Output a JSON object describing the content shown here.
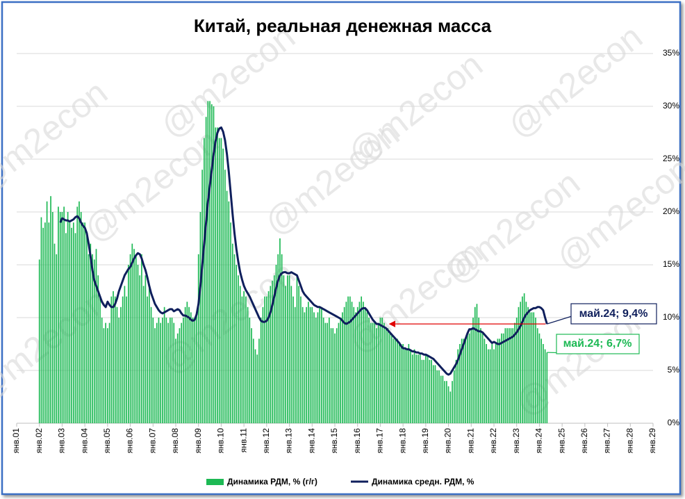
{
  "chart_data": {
    "type": "combo",
    "title": "Китай, реальная денежная масса",
    "watermark": "@m2econ",
    "categories": [
      "янв.01",
      null,
      null,
      null,
      null,
      null,
      null,
      null,
      null,
      null,
      null,
      null,
      "янв.02",
      null,
      null,
      null,
      null,
      null,
      null,
      null,
      null,
      null,
      null,
      null,
      "янв.03",
      null,
      null,
      null,
      null,
      null,
      null,
      null,
      null,
      null,
      null,
      null,
      "янв.04",
      null,
      null,
      null,
      null,
      null,
      null,
      null,
      null,
      null,
      null,
      null,
      "янв.05",
      null,
      null,
      null,
      null,
      null,
      null,
      null,
      null,
      null,
      null,
      null,
      "янв.06",
      null,
      null,
      null,
      null,
      null,
      null,
      null,
      null,
      null,
      null,
      null,
      "янв.07",
      null,
      null,
      null,
      null,
      null,
      null,
      null,
      null,
      null,
      null,
      null,
      "янв.08",
      null,
      null,
      null,
      null,
      null,
      null,
      null,
      null,
      null,
      null,
      null,
      "янв.09",
      null,
      null,
      null,
      null,
      null,
      null,
      null,
      null,
      null,
      null,
      null,
      "янв.10",
      null,
      null,
      null,
      null,
      null,
      null,
      null,
      null,
      null,
      null,
      null,
      "янв.11",
      null,
      null,
      null,
      null,
      null,
      null,
      null,
      null,
      null,
      null,
      null,
      "янв.12",
      null,
      null,
      null,
      null,
      null,
      null,
      null,
      null,
      null,
      null,
      null,
      "янв.13",
      null,
      null,
      null,
      null,
      null,
      null,
      null,
      null,
      null,
      null,
      null,
      "янв.14",
      null,
      null,
      null,
      null,
      null,
      null,
      null,
      null,
      null,
      null,
      null,
      "янв.15",
      null,
      null,
      null,
      null,
      null,
      null,
      null,
      null,
      null,
      null,
      null,
      "янв.16",
      null,
      null,
      null,
      null,
      null,
      null,
      null,
      null,
      null,
      null,
      null,
      "янв.17",
      null,
      null,
      null,
      null,
      null,
      null,
      null,
      null,
      null,
      null,
      null,
      "янв.18",
      null,
      null,
      null,
      null,
      null,
      null,
      null,
      null,
      null,
      null,
      null,
      "янв.19",
      null,
      null,
      null,
      null,
      null,
      null,
      null,
      null,
      null,
      null,
      null,
      "янв.20",
      null,
      null,
      null,
      null,
      null,
      null,
      null,
      null,
      null,
      null,
      null,
      "янв.21",
      null,
      null,
      null,
      null,
      null,
      null,
      null,
      null,
      null,
      null,
      null,
      "янв.22",
      null,
      null,
      null,
      null,
      null,
      null,
      null,
      null,
      null,
      null,
      null,
      "янв.23",
      null,
      null,
      null,
      null,
      null,
      null,
      null,
      null,
      null,
      null,
      null,
      "янв.24",
      null,
      null,
      null,
      null,
      null,
      null,
      null,
      null,
      null,
      null,
      null,
      "янв.25",
      null,
      null,
      null,
      null,
      null,
      null,
      null,
      null,
      null,
      null,
      null,
      "янв.26",
      null,
      null,
      null,
      null,
      null,
      null,
      null,
      null,
      null,
      null,
      null,
      "янв.27",
      null,
      null,
      null,
      null,
      null,
      null,
      null,
      null,
      null,
      null,
      null,
      "янв.28",
      null,
      null,
      null,
      null,
      null,
      null,
      null,
      null,
      null,
      null,
      null,
      "янв.29"
    ],
    "series": [
      {
        "name": "Динамика РДМ, % (г/г)",
        "type": "bar",
        "color": "#1db954",
        "end_label": "май.24; 6,7%",
        "values": [
          null,
          null,
          null,
          null,
          null,
          null,
          null,
          null,
          null,
          null,
          null,
          null,
          15.5,
          19.5,
          18.5,
          19,
          21,
          19,
          21.5,
          20,
          17,
          16,
          20.5,
          20,
          20,
          20.5,
          18,
          20,
          19,
          18.5,
          19,
          18,
          20.5,
          21,
          20,
          19,
          19,
          18,
          16,
          17,
          16,
          15.5,
          16.5,
          14,
          12,
          10,
          9,
          9.5,
          9,
          9.5,
          12,
          12.5,
          12,
          11,
          10,
          11,
          12,
          13,
          12,
          15,
          16,
          17,
          16.5,
          16,
          15,
          14,
          16,
          13,
          14,
          12,
          13,
          11,
          10,
          9,
          9.5,
          10,
          9.5,
          10,
          11,
          10,
          9.5,
          10,
          10,
          9.5,
          8,
          8.5,
          9,
          9.5,
          10,
          11,
          11.5,
          11,
          10.5,
          10,
          10,
          10.5,
          16,
          20,
          24,
          27,
          29,
          30.5,
          30.5,
          30.2,
          30,
          28,
          28,
          27,
          27,
          26,
          24,
          22,
          21,
          19,
          17,
          16,
          15,
          14,
          13,
          12,
          12.5,
          12,
          11,
          10,
          9,
          8,
          7,
          6.5,
          8,
          10,
          11,
          12,
          12,
          12.5,
          13,
          13.5,
          14,
          15,
          16,
          17.5,
          16,
          14,
          13,
          14,
          14,
          13,
          12,
          11,
          14,
          13,
          12,
          11,
          10.5,
          11,
          11.5,
          11,
          11,
          10.5,
          10,
          10.5,
          11,
          11,
          10,
          9.5,
          9.5,
          10,
          9,
          9,
          8.5,
          9,
          9.5,
          10,
          10.5,
          11,
          11.5,
          12,
          12,
          11.5,
          11,
          10.5,
          11,
          11.5,
          12,
          11.5,
          11,
          10.5,
          10,
          9.5,
          9.5,
          9.5,
          9,
          9.5,
          10,
          10,
          9.5,
          9,
          9,
          8.5,
          8.5,
          8,
          8,
          8,
          7.5,
          7.5,
          7.5,
          7,
          7,
          7.5,
          7,
          6.5,
          7,
          6.5,
          6.5,
          6.5,
          6,
          6,
          6.5,
          6.5,
          6,
          6,
          5.5,
          5.5,
          5,
          5,
          4.5,
          4.5,
          4,
          4,
          3.5,
          3,
          4,
          5,
          6,
          7,
          7.5,
          8,
          8,
          8,
          8.5,
          8.5,
          9,
          10,
          11,
          11.3,
          10,
          9,
          8.5,
          8,
          7.5,
          7,
          7,
          7.5,
          7,
          7.5,
          8,
          8,
          8.5,
          8.5,
          9,
          9,
          9,
          9,
          9,
          9.5,
          10,
          11,
          11.5,
          12,
          12.3,
          11.5,
          11,
          10.5,
          10.5,
          10.5,
          10,
          9,
          8.5,
          8,
          7.5,
          7,
          6.7,
          null,
          null,
          null,
          null,
          null,
          null,
          null,
          null,
          null,
          null,
          null,
          null,
          null,
          null,
          null,
          null,
          null,
          null,
          null,
          null,
          null,
          null,
          null,
          null,
          null,
          null,
          null,
          null,
          null,
          null,
          null,
          null,
          null,
          null,
          null,
          null,
          null,
          null,
          null,
          null,
          null,
          null,
          null,
          null,
          null,
          null,
          null,
          null,
          null,
          null,
          null,
          null,
          null,
          null,
          null,
          null
        ]
      },
      {
        "name": "Динамика средн. РДМ, %",
        "type": "line",
        "color": "#0f1f5c",
        "end_label": "май.24; 9,4%",
        "values": [
          null,
          null,
          null,
          null,
          null,
          null,
          null,
          null,
          null,
          null,
          null,
          null,
          null,
          null,
          null,
          null,
          null,
          null,
          null,
          null,
          null,
          null,
          null,
          19,
          19.4,
          19.3,
          19.2,
          19.2,
          19.1,
          19.2,
          19.3,
          19.5,
          19.6,
          19.4,
          19,
          18.7,
          18.5,
          18,
          17,
          15.8,
          14.5,
          13.5,
          13,
          12.5,
          12,
          11.5,
          11.2,
          11,
          11.5,
          11.2,
          11,
          11,
          11.3,
          11.8,
          12.5,
          13,
          13.5,
          14,
          14.3,
          14.6,
          14.8,
          15.2,
          15.6,
          15.9,
          16.1,
          16,
          15.6,
          15,
          14.5,
          13.8,
          13,
          12.3,
          11.8,
          11.3,
          11,
          10.7,
          10.5,
          10.4,
          10.5,
          10.6,
          10.7,
          10.8,
          10.8,
          10.6,
          10.7,
          10.8,
          10.7,
          10.4,
          10.2,
          10.2,
          10.1,
          10,
          9.8,
          9.7,
          9.8,
          10.3,
          11.3,
          13,
          15,
          17,
          19,
          21,
          22.5,
          24,
          25.5,
          26.7,
          27.5,
          27.9,
          28,
          27.6,
          26.8,
          25.5,
          23.8,
          21.8,
          19.8,
          18,
          16.5,
          15.3,
          14.3,
          13.6,
          13,
          12.6,
          12.3,
          12,
          11.6,
          11.2,
          10.8,
          10.4,
          10,
          9.7,
          9.6,
          9.6,
          9.7,
          10,
          10.5,
          11.2,
          12,
          12.8,
          13.5,
          14,
          14.2,
          14.3,
          14.3,
          14.2,
          14.2,
          14.3,
          14.2,
          14.1,
          14,
          13.5,
          13,
          12.5,
          12.2,
          12,
          11.8,
          11.6,
          11.4,
          11.2,
          11.1,
          11,
          11,
          10.9,
          10.8,
          10.7,
          10.6,
          10.5,
          10.4,
          10.3,
          10.2,
          10.1,
          10,
          9.9,
          9.7,
          9.5,
          9.4,
          9.5,
          9.6,
          9.8,
          10,
          10.2,
          10.4,
          10.6,
          10.8,
          10.9,
          10.9,
          10.7,
          10.4,
          10.1,
          9.8,
          9.6,
          9.4,
          9.4,
          9.3,
          9.2,
          9.1,
          9,
          8.8,
          8.6,
          8.4,
          8.2,
          8,
          7.8,
          7.6,
          7.3,
          7.1,
          7.1,
          7,
          7,
          6.9,
          6.8,
          6.8,
          6.7,
          6.7,
          6.6,
          6.6,
          6.5,
          6.5,
          6.4,
          6.3,
          6.2,
          6.1,
          5.9,
          5.7,
          5.5,
          5.3,
          5.1,
          4.9,
          4.7,
          4.6,
          4.7,
          5,
          5.3,
          5.6,
          6,
          6.5,
          7,
          7.5,
          8,
          8.5,
          8.9,
          8.9,
          9,
          8.9,
          8.8,
          8.7,
          8.7,
          8.6,
          8.4,
          8.2,
          8,
          7.8,
          7.6,
          7.7,
          7.6,
          7.5,
          7.5,
          7.6,
          7.7,
          7.8,
          7.9,
          8,
          8.1,
          8.2,
          8.4,
          8.6,
          8.9,
          9.2,
          9.6,
          10,
          10.3,
          10.5,
          10.7,
          10.8,
          10.9,
          10.9,
          11,
          11,
          10.9,
          10.7,
          10,
          9.4,
          null,
          null,
          null,
          null,
          null,
          null,
          null,
          null,
          null,
          null,
          null,
          null,
          null,
          null,
          null,
          null,
          null,
          null,
          null,
          null,
          null,
          null,
          null,
          null,
          null,
          null,
          null,
          null,
          null,
          null,
          null,
          null,
          null,
          null,
          null,
          null,
          null,
          null,
          null,
          null,
          null,
          null,
          null,
          null,
          null,
          null,
          null,
          null,
          null,
          null,
          null,
          null,
          null,
          null,
          null,
          null
        ]
      }
    ],
    "ylim": [
      0,
      35
    ],
    "yticks": [
      {
        "value": 0,
        "label": "0%"
      },
      {
        "value": 5,
        "label": "5%"
      },
      {
        "value": 10,
        "label": "10%"
      },
      {
        "value": 15,
        "label": "15%"
      },
      {
        "value": 20,
        "label": "20%"
      },
      {
        "value": 25,
        "label": "25%"
      },
      {
        "value": 30,
        "label": "30%"
      },
      {
        "value": 35,
        "label": "35%"
      }
    ],
    "grid": true,
    "legend": "bottom"
  }
}
